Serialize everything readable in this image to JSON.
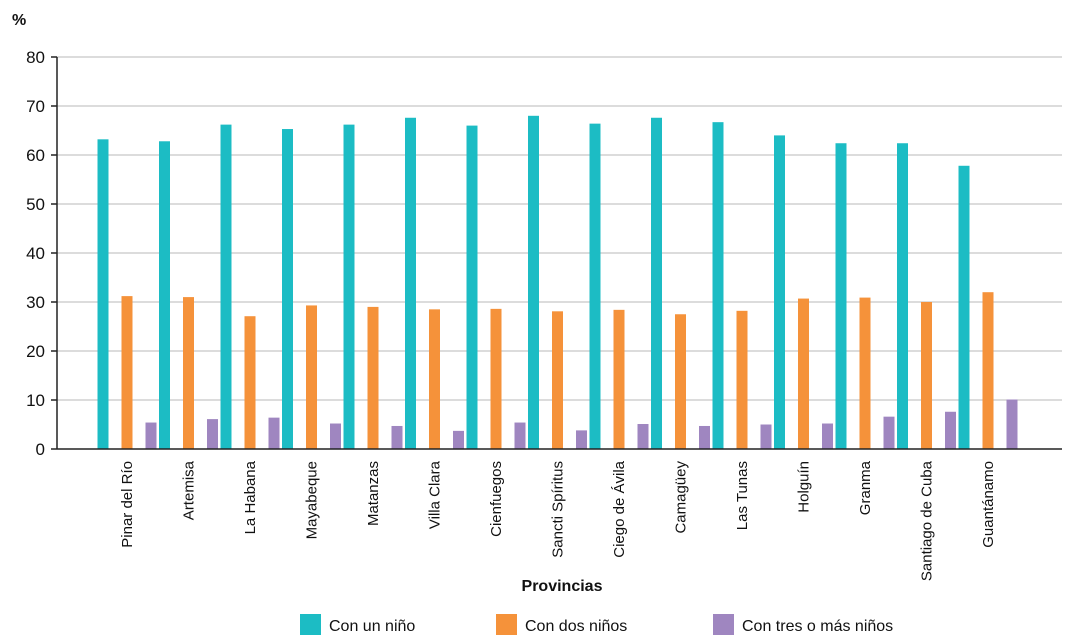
{
  "chart_data": {
    "type": "bar",
    "title": "",
    "ylabel": "%",
    "xlabel": "Provincias",
    "ylim": [
      0,
      80
    ],
    "yticks": [
      0,
      10,
      20,
      30,
      40,
      50,
      60,
      70,
      80
    ],
    "grid": true,
    "legend_position": "bottom",
    "categories": [
      "Pinar del Río",
      "Artemisa",
      "La Habana",
      "Mayabeque",
      "Matanzas",
      "Villa Clara",
      "Cienfuegos",
      "Sancti Spíritus",
      "Ciego de Ávila",
      "Camagüey",
      "Las Tunas",
      "Holguín",
      "Granma",
      "Santiago de Cuba",
      "Guantánamo"
    ],
    "series": [
      {
        "name": "Con un niño",
        "color": "#1cbcc4",
        "values": [
          63.2,
          62.8,
          66.2,
          65.3,
          66.2,
          67.6,
          66.0,
          68.0,
          66.4,
          67.6,
          66.7,
          64.0,
          62.4,
          62.4,
          57.8
        ]
      },
      {
        "name": "Con dos niños",
        "color": "#f5923a",
        "values": [
          31.2,
          31.0,
          27.1,
          29.3,
          29.0,
          28.5,
          28.6,
          28.1,
          28.4,
          27.5,
          28.2,
          30.7,
          30.9,
          30.0,
          32.0
        ]
      },
      {
        "name": "Con tres o más niños",
        "color": "#9f86c0",
        "values": [
          5.4,
          6.1,
          6.4,
          5.2,
          4.7,
          3.7,
          5.4,
          3.8,
          5.1,
          4.7,
          5.0,
          5.2,
          6.6,
          7.6,
          10.1
        ]
      }
    ]
  }
}
